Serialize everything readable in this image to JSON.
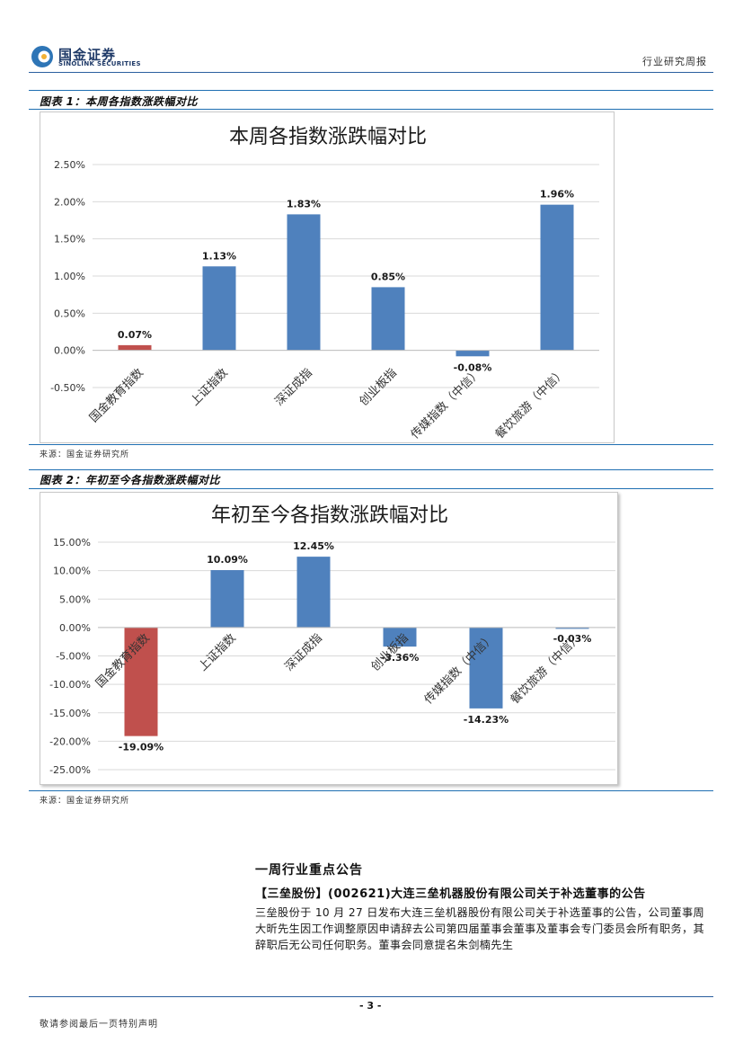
{
  "header": {
    "logo_cn": "国金证券",
    "logo_en": "SINOLINK SECURITIES",
    "report_type": "行业研究周报"
  },
  "figure1": {
    "caption": "图表 1：本周各指数涨跌幅对比",
    "source": "来源：国金证券研究所"
  },
  "figure2": {
    "caption": "图表 2：年初至今各指数涨跌幅对比",
    "source": "来源：国金证券研究所"
  },
  "chart_data": [
    {
      "type": "bar",
      "title": "本周各指数涨跌幅对比",
      "categories": [
        "国金教育指数",
        "上证指数",
        "深证成指",
        "创业板指",
        "传媒指数（中信）",
        "餐饮旅游（中信）"
      ],
      "values": [
        0.07,
        1.13,
        1.83,
        0.85,
        -0.08,
        1.96
      ],
      "value_labels": [
        "0.07%",
        "1.13%",
        "1.83%",
        "0.85%",
        "-0.08%",
        "1.96%"
      ],
      "ylim": [
        -0.5,
        2.5
      ],
      "yticks": [
        -0.5,
        0,
        0.5,
        1.0,
        1.5,
        2.0,
        2.5
      ],
      "ytick_labels": [
        "-0.50%",
        "0.00%",
        "0.50%",
        "1.00%",
        "1.50%",
        "2.00%",
        "2.50%"
      ],
      "highlight_index": 0,
      "colors": {
        "highlight": "#c0504d",
        "bar": "#4f81bd"
      },
      "grid": true
    },
    {
      "type": "bar",
      "title": "年初至今各指数涨跌幅对比",
      "categories": [
        "国金教育指数",
        "上证指数",
        "深证成指",
        "创业板指",
        "传媒指数（中信）",
        "餐饮旅游（中信）"
      ],
      "values": [
        -19.09,
        10.09,
        12.45,
        -3.36,
        -14.23,
        -0.03
      ],
      "value_labels": [
        "-19.09%",
        "10.09%",
        "12.45%",
        "-3.36%",
        "-14.23%",
        "-0.03%"
      ],
      "ylim": [
        -25,
        15
      ],
      "yticks": [
        -25,
        -20,
        -15,
        -10,
        -5,
        0,
        5,
        10,
        15
      ],
      "ytick_labels": [
        "-25.00%",
        "-20.00%",
        "-15.00%",
        "-10.00%",
        "-5.00%",
        "0.00%",
        "5.00%",
        "10.00%",
        "15.00%"
      ],
      "highlight_index": 0,
      "colors": {
        "highlight": "#c0504d",
        "bar": "#4f81bd"
      },
      "grid": true
    }
  ],
  "section": {
    "heading": "一周行业重点公告",
    "announcement_title": "【三垒股份】(002621)大连三垒机器股份有限公司关于补选董事的公告",
    "announcement_body": "三垒股份于 10 月 27 日发布大连三垒机器股份有限公司关于补选董事的公告，公司董事周大昕先生因工作调整原因申请辞去公司第四届董事会董事及董事会专门委员会所有职务，其辞职后无公司任何职务。董事会同意提名朱剑楠先生"
  },
  "footer": {
    "page_number": "- 3 -",
    "note": "敬请参阅最后一页特别声明"
  }
}
